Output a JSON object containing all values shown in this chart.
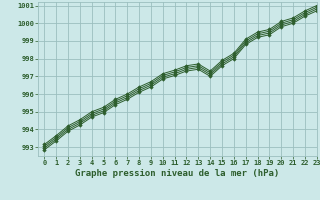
{
  "title": "Graphe pression niveau de la mer (hPa)",
  "bg_color": "#cce8e8",
  "grid_color": "#9bbfbf",
  "line_color": "#2d5e2d",
  "marker_color": "#2d5e2d",
  "xlim": [
    -0.5,
    23
  ],
  "ylim": [
    992.5,
    1001.2
  ],
  "xticks": [
    0,
    1,
    2,
    3,
    4,
    5,
    6,
    7,
    8,
    9,
    10,
    11,
    12,
    13,
    14,
    15,
    16,
    17,
    18,
    19,
    20,
    21,
    22,
    23
  ],
  "yticks": [
    993,
    994,
    995,
    996,
    997,
    998,
    999,
    1000,
    1001
  ],
  "series_main": [
    993.0,
    993.5,
    994.05,
    994.4,
    994.85,
    995.1,
    995.55,
    995.85,
    996.25,
    996.55,
    997.0,
    997.2,
    997.45,
    997.55,
    997.15,
    997.75,
    998.15,
    998.95,
    999.35,
    999.5,
    999.95,
    1000.15,
    1000.55,
    1000.85
  ],
  "offsets": [
    0.15,
    0.05,
    -0.05,
    -0.15
  ]
}
